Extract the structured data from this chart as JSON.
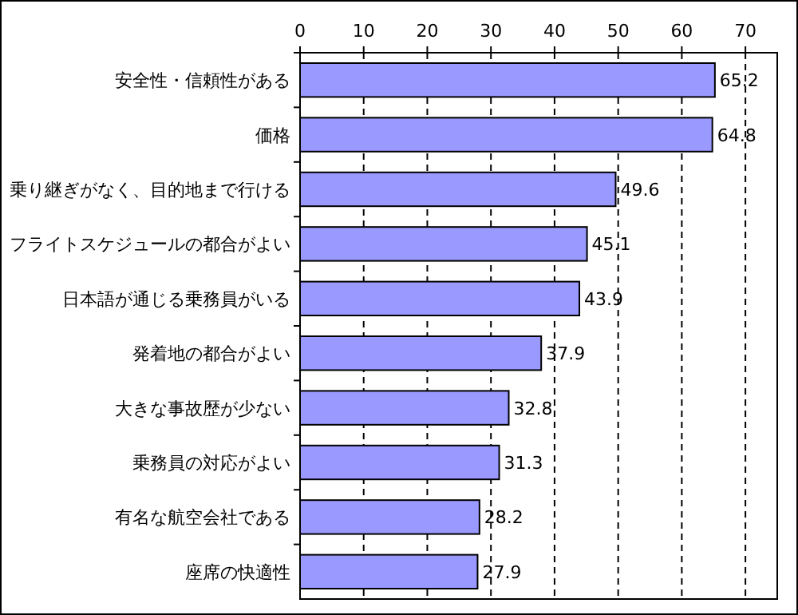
{
  "chart_data": {
    "type": "bar",
    "orientation": "horizontal",
    "categories": [
      "安全性・信頼性がある",
      "価格",
      "乗り継ぎがなく、目的地まで行ける",
      "フライトスケジュールの都合がよい",
      "日本語が通じる乗務員がいる",
      "発着地の都合がよい",
      "大きな事故歴が少ない",
      "乗務員の対応がよい",
      "有名な航空会社である",
      "座席の快適性"
    ],
    "values": [
      65.2,
      64.8,
      49.6,
      45.1,
      43.9,
      37.9,
      32.8,
      31.3,
      28.2,
      27.9
    ],
    "color": "#9999ff",
    "xlim": [
      0,
      75
    ],
    "xticks": [
      0,
      10,
      20,
      30,
      40,
      50,
      60,
      70
    ],
    "grid": "x",
    "data_labels": true
  }
}
